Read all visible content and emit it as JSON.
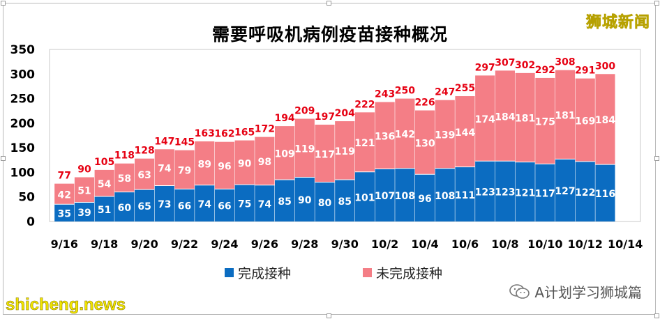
{
  "brand": {
    "name": "狮城新闻",
    "footer_source": "shicheng.news",
    "footer_account": "A计划学习狮城篇"
  },
  "colors": {
    "completed": "#0b6cc1",
    "incomplete": "#f47e86",
    "total_label": "#e60012",
    "segment_label": "#ffffff"
  },
  "icons": {
    "wechat": "wechat-icon"
  },
  "chart_data": {
    "type": "bar",
    "stacked": true,
    "title": "需要呼吸机病例疫苗接种概况",
    "xlabel": "",
    "ylabel": "",
    "ylim": [
      0,
      350
    ],
    "yticks": [
      0,
      50,
      100,
      150,
      200,
      250,
      300,
      350
    ],
    "xtick_labels": [
      "9/16",
      "9/18",
      "9/20",
      "9/22",
      "9/24",
      "9/26",
      "9/28",
      "9/30",
      "10/2",
      "10/4",
      "10/6",
      "10/8",
      "10/10",
      "10/12",
      "10/14"
    ],
    "categories": [
      "9/16",
      "9/17",
      "9/18",
      "9/19",
      "9/20",
      "9/21",
      "9/22",
      "9/23",
      "9/24",
      "9/25",
      "9/26",
      "9/27",
      "9/28",
      "9/29",
      "9/30",
      "10/1",
      "10/2",
      "10/3",
      "10/4",
      "10/5",
      "10/6",
      "10/7",
      "10/8",
      "10/9",
      "10/10",
      "10/11",
      "10/12",
      "10/13"
    ],
    "series": [
      {
        "name": "完成接种",
        "values": [
          35,
          39,
          51,
          60,
          65,
          73,
          66,
          74,
          66,
          75,
          74,
          85,
          90,
          80,
          85,
          101,
          107,
          108,
          96,
          108,
          111,
          123,
          123,
          121,
          117,
          127,
          122,
          116
        ]
      },
      {
        "name": "未完成接种",
        "values": [
          42,
          51,
          54,
          58,
          63,
          74,
          79,
          89,
          96,
          90,
          98,
          109,
          119,
          117,
          119,
          121,
          136,
          142,
          130,
          139,
          144,
          174,
          184,
          181,
          175,
          181,
          169,
          184
        ]
      }
    ],
    "totals": [
      77,
      90,
      105,
      118,
      128,
      147,
      145,
      163,
      162,
      165,
      172,
      194,
      209,
      197,
      204,
      222,
      243,
      250,
      226,
      247,
      255,
      297,
      307,
      302,
      292,
      308,
      291,
      300
    ],
    "legend_position": "bottom",
    "grid": false
  }
}
